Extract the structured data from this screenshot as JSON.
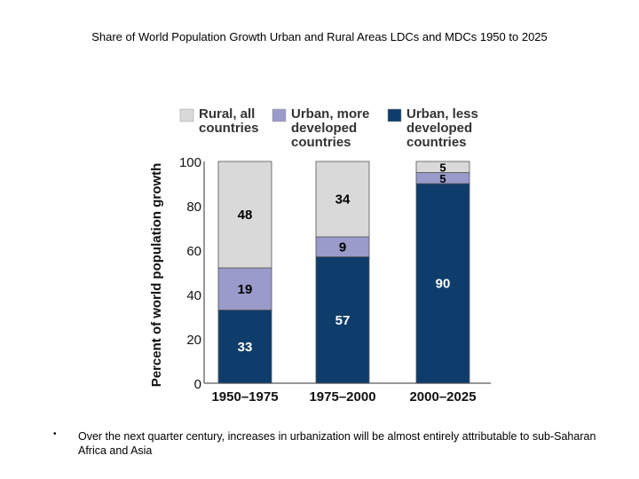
{
  "slide": {
    "title": "Share of World Population Growth Urban and Rural Areas LDCs and MDCs 1950 to 2025",
    "bullet_symbol": "•",
    "bullet_text": "Over the next quarter century, increases in urbanization will be almost entirely attributable to sub-Saharan Africa and Asia"
  },
  "chart_data": {
    "type": "bar",
    "stacked": true,
    "title": "",
    "xlabel": "",
    "ylabel": "Percent of world population growth",
    "ylim": [
      0,
      100
    ],
    "yticks": [
      0,
      20,
      40,
      60,
      80,
      100
    ],
    "categories": [
      "1950–1975",
      "1975–2000",
      "2000–2025"
    ],
    "legend_position": "top",
    "series": [
      {
        "name": "Urban, less developed countries",
        "legend_lines": [
          "Urban, less",
          "developed",
          "countries"
        ],
        "values": [
          33,
          57,
          90
        ],
        "color": "#0f3d6b",
        "label_color": "#ffffff"
      },
      {
        "name": "Urban, more developed countries",
        "legend_lines": [
          "Urban, more",
          "developed",
          "countries"
        ],
        "values": [
          19,
          9,
          5
        ],
        "color": "#9a9acb",
        "label_color": "#000000"
      },
      {
        "name": "Rural, all countries",
        "legend_lines": [
          "Rural, all",
          "countries"
        ],
        "values": [
          48,
          34,
          5
        ],
        "color": "#d9d9d9",
        "label_color": "#000000"
      }
    ]
  }
}
